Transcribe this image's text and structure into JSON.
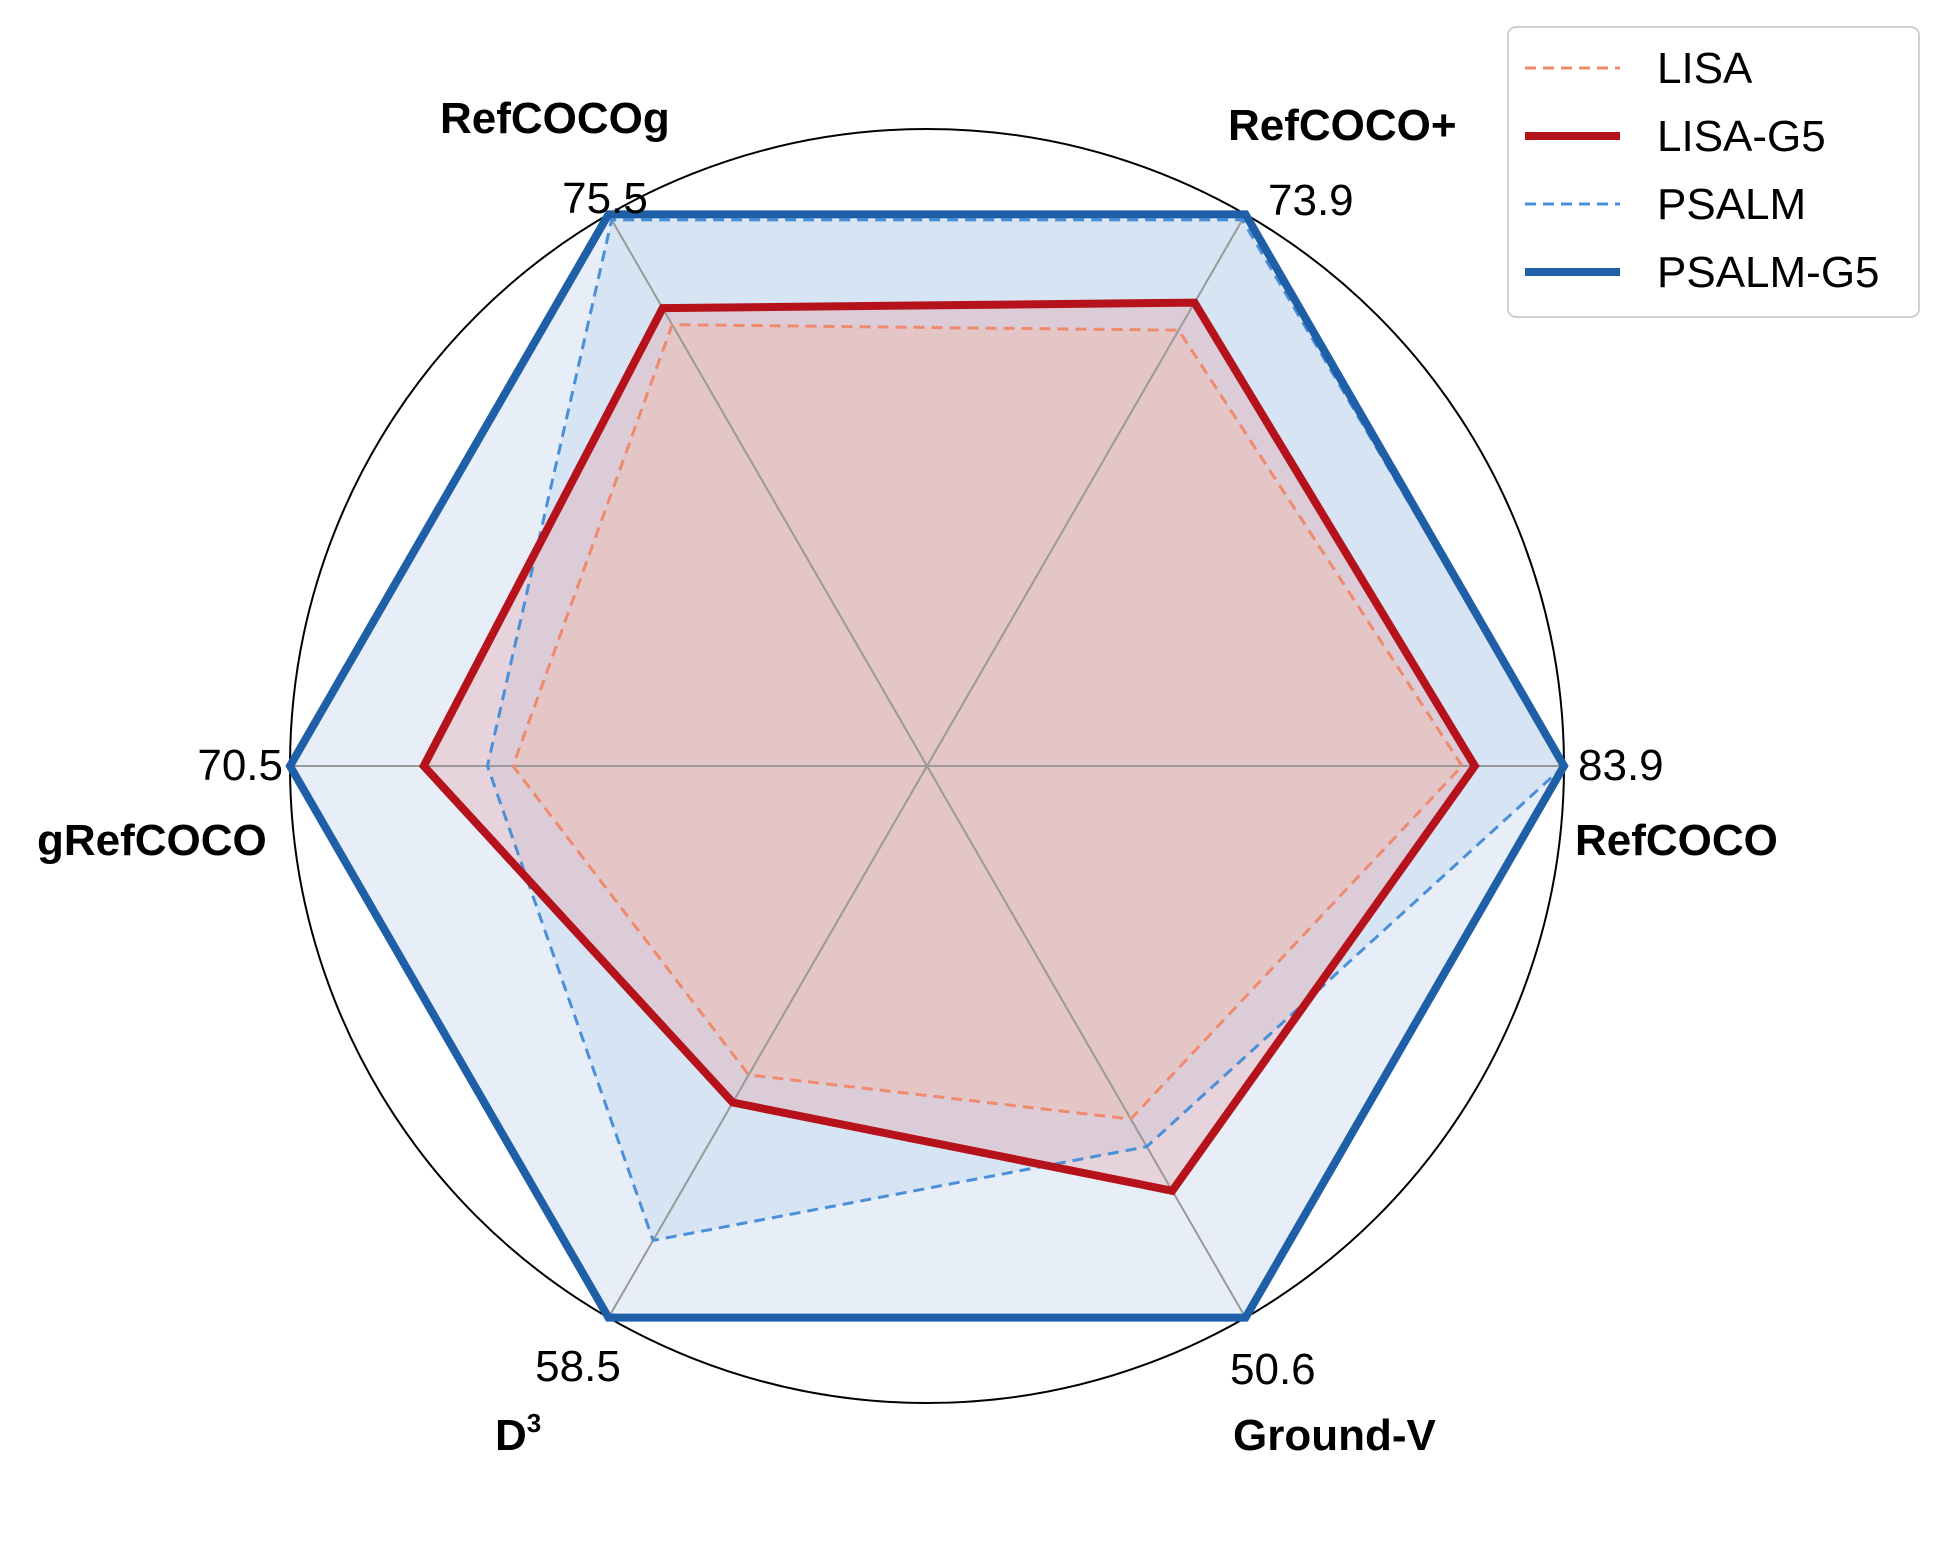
{
  "chart_data": {
    "type": "radar",
    "axes": [
      {
        "name": "RefCOCO",
        "max_label": "83.9",
        "angle_deg": 0
      },
      {
        "name": "RefCOCO+",
        "max_label": "73.9",
        "angle_deg": 60
      },
      {
        "name": "RefCOCOg",
        "max_label": "75.5",
        "angle_deg": 120
      },
      {
        "name": "gRefCOCO",
        "max_label": "70.5",
        "angle_deg": 180
      },
      {
        "name": "D",
        "name_sup": "3",
        "max_label": "58.5",
        "angle_deg": 240
      },
      {
        "name": "Ground-V",
        "max_label": "50.6",
        "angle_deg": 300
      }
    ],
    "normalization": "fraction of per-axis maximum (PSALM-G5 = 1.0)",
    "series": [
      {
        "name": "LISA",
        "color": "#f08a6e",
        "style": "dashed",
        "fill": "#f4b9a8",
        "values": [
          0.84,
          0.79,
          0.8,
          0.65,
          0.56,
          0.64
        ]
      },
      {
        "name": "LISA-G5",
        "color": "#b5121b",
        "style": "solid",
        "fill": "#e8a0a5",
        "values": [
          0.86,
          0.84,
          0.83,
          0.79,
          0.61,
          0.77
        ]
      },
      {
        "name": "PSALM",
        "color": "#4a90d9",
        "style": "dashed",
        "fill": "#b8d2ec",
        "values": [
          1.0,
          0.99,
          0.99,
          0.69,
          0.86,
          0.69
        ]
      },
      {
        "name": "PSALM-G5",
        "color": "#1f5fa8",
        "style": "solid",
        "fill": "#c9d9ee",
        "values": [
          1.0,
          1.0,
          1.0,
          1.0,
          1.0,
          1.0
        ]
      }
    ],
    "legend_position": "top-right",
    "grid": true
  }
}
